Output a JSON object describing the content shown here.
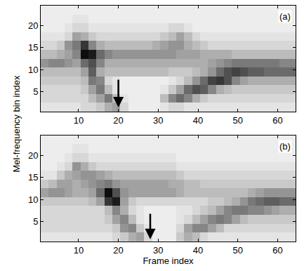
{
  "chart_data": {
    "type": "heatmap",
    "xlabel": "Frame index",
    "ylabel": "Mel-frequency bin index",
    "x": [
      1.5,
      3.5,
      5.5,
      7.5,
      9.5,
      11.5,
      13.5,
      15.5,
      17.5,
      19.5,
      21.5,
      23.5,
      25.5,
      27.5,
      29.5,
      31.5,
      33.5,
      35.5,
      37.5,
      39.5,
      41.5,
      43.5,
      45.5,
      47.5,
      49.5,
      51.5,
      53.5,
      55.5,
      57.5,
      59.5,
      61.5,
      63.5
    ],
    "y": [
      1.5,
      3.5,
      5.5,
      7.5,
      9.5,
      11.5,
      13.5,
      15.5,
      17.5,
      19.5,
      21.5,
      23.5
    ],
    "xlim": [
      0.5,
      64.5
    ],
    "ylim": [
      0.5,
      24.5
    ],
    "xticks": [
      10,
      20,
      30,
      40,
      50,
      60
    ],
    "yticks": [
      5,
      10,
      15,
      20
    ],
    "zlim": [
      0,
      10
    ],
    "panels": [
      {
        "label": "(a)",
        "arrow": {
          "x": 20,
          "y_start": 8,
          "y_end": 1.5
        },
        "z": [
          [
            1.5,
            1.5,
            1.5,
            1.5,
            1.5,
            2,
            2,
            2.5,
            3.5,
            4,
            2,
            1,
            1,
            1,
            1,
            1.5,
            2,
            2,
            1.5,
            1.5,
            1.5,
            1.5,
            1.5,
            1.5,
            1.5,
            1.5,
            1.5,
            1.5,
            1.5,
            1.5,
            1.5,
            1.5
          ],
          [
            2,
            2,
            2,
            2,
            2,
            2,
            3,
            4,
            5.5,
            3,
            1.5,
            1,
            1,
            1,
            1,
            3,
            5,
            6,
            5,
            3.5,
            2.5,
            2,
            2,
            2,
            2,
            2,
            2,
            2,
            2,
            2,
            2,
            2
          ],
          [
            2,
            2,
            2,
            2,
            2,
            2.5,
            4,
            5.5,
            3,
            1.5,
            1,
            1,
            1,
            1,
            1,
            1.5,
            2.5,
            4,
            6,
            7,
            6.5,
            5,
            3.5,
            3,
            2.5,
            2.5,
            2.5,
            2.5,
            2.5,
            2.5,
            2.5,
            2.5
          ],
          [
            2.5,
            2.5,
            2.5,
            2.5,
            2.5,
            3,
            5.5,
            5,
            2,
            1.5,
            1,
            1,
            1,
            1,
            1,
            1,
            1.5,
            2,
            3,
            4.5,
            6,
            7.5,
            8,
            7,
            5,
            4,
            3.5,
            3.5,
            3.5,
            3.5,
            3.5,
            3.5
          ],
          [
            3,
            3,
            3,
            3,
            3,
            4,
            6.5,
            3.5,
            3,
            3,
            3,
            3,
            3,
            3,
            3,
            3,
            2.5,
            2.5,
            2.5,
            3,
            3.5,
            4.5,
            6,
            7,
            7.5,
            7,
            6.5,
            6.5,
            6,
            6,
            6,
            6
          ],
          [
            4.5,
            5,
            5,
            4.5,
            4,
            6,
            7,
            5,
            3.5,
            3.5,
            3.5,
            3.5,
            3.5,
            3.5,
            3.5,
            3.5,
            3.5,
            3.5,
            3.5,
            3.5,
            3.5,
            4,
            4.5,
            5,
            5.5,
            5.5,
            5.5,
            5.5,
            5.5,
            5.5,
            5,
            5
          ],
          [
            3,
            3,
            3.5,
            4,
            5,
            9.5,
            9,
            6,
            5,
            4.5,
            4.5,
            4.5,
            4.5,
            4.5,
            4.5,
            4.5,
            4.5,
            4,
            4,
            4,
            3.5,
            3.5,
            3.5,
            3.5,
            3,
            3,
            3,
            3,
            3,
            3,
            3,
            3
          ],
          [
            2,
            2,
            2.5,
            4.5,
            5.5,
            8,
            5,
            3.5,
            3,
            3,
            3,
            3,
            3,
            3,
            3.5,
            4,
            4.5,
            4.5,
            3.5,
            3,
            2.5,
            2,
            2,
            2,
            2,
            2,
            2,
            2,
            2,
            2,
            2,
            2
          ],
          [
            1.5,
            1.5,
            1.5,
            2,
            4,
            3.5,
            2.5,
            2,
            2,
            2,
            2,
            2,
            2,
            2,
            2,
            2.5,
            3,
            4,
            3,
            2,
            1.5,
            1.5,
            1.5,
            1.5,
            1.5,
            1.5,
            1.5,
            1.5,
            1.5,
            1.5,
            1.5,
            1.5
          ],
          [
            1,
            1,
            1,
            1.5,
            2,
            2,
            1.5,
            1.5,
            1.5,
            1.5,
            1.5,
            1.5,
            1.5,
            1.5,
            1.5,
            1.5,
            2,
            2,
            1.5,
            1,
            1,
            1,
            1,
            1,
            1,
            1,
            1,
            1,
            1,
            1,
            1,
            1
          ],
          [
            1,
            1,
            1,
            1,
            1.5,
            1.5,
            1,
            1,
            1,
            1,
            1,
            1,
            1,
            1,
            1,
            1,
            1,
            1,
            1,
            1,
            1,
            1,
            1,
            1,
            1,
            1,
            1,
            1,
            1,
            1,
            1,
            1
          ],
          [
            1,
            1,
            1,
            1,
            1,
            1,
            1,
            1,
            1,
            1,
            1,
            1,
            1,
            1,
            1,
            1,
            1,
            1,
            1,
            1,
            1,
            1,
            1,
            1,
            1,
            1,
            1,
            1,
            1,
            1,
            1,
            1
          ]
        ]
      },
      {
        "label": "(b)",
        "arrow": {
          "x": 28,
          "y_start": 7,
          "y_end": 1
        },
        "z": [
          [
            1.5,
            1.5,
            1.5,
            1.5,
            1.5,
            1.5,
            1.5,
            1.5,
            1.5,
            2,
            2.5,
            3.5,
            4,
            2,
            1,
            1,
            1,
            2.5,
            3.5,
            3,
            2,
            1.5,
            1.5,
            1.5,
            1.5,
            1.5,
            1.5,
            1.5,
            1.5,
            1.5,
            1.5,
            1.5
          ],
          [
            2,
            2,
            2,
            2,
            2,
            2,
            2,
            2,
            2,
            2.5,
            4.5,
            5,
            2.5,
            1.5,
            1,
            1,
            1,
            2,
            4,
            5,
            5,
            4,
            3,
            2,
            2,
            2,
            2,
            2,
            2,
            2,
            2,
            2
          ],
          [
            2,
            2,
            2,
            2,
            2,
            2,
            2,
            2,
            2.5,
            4,
            5,
            3,
            1.5,
            1,
            1,
            1,
            1,
            1.5,
            2,
            3,
            4,
            5,
            5.5,
            5,
            4,
            3,
            2.5,
            2.5,
            2.5,
            2.5,
            2.5,
            2.5
          ],
          [
            2,
            2,
            2,
            2,
            2,
            2,
            2,
            2,
            3,
            5,
            3.5,
            2,
            1.5,
            1,
            1,
            1,
            1,
            1.5,
            1.5,
            2,
            2.5,
            3,
            4,
            5,
            5.5,
            5.5,
            5,
            5,
            4.5,
            4,
            3.5,
            3.5
          ],
          [
            2.5,
            2.5,
            2.5,
            2.5,
            2.5,
            2.5,
            3,
            4,
            8,
            9,
            4,
            2.5,
            2,
            2,
            2,
            2,
            2,
            2,
            2,
            2,
            2,
            2.5,
            2.5,
            3,
            3.5,
            4.5,
            5.5,
            6,
            6.5,
            6.5,
            6,
            6
          ],
          [
            4,
            4.5,
            4.5,
            4,
            3.5,
            3.5,
            4,
            6,
            9.5,
            7,
            4.5,
            4,
            4,
            4,
            4,
            4,
            4,
            3.5,
            3,
            3,
            3,
            3,
            3,
            3,
            3,
            3,
            3.5,
            4,
            4.5,
            4.5,
            4.5,
            4.5
          ],
          [
            2.5,
            3,
            4,
            4,
            3.5,
            4,
            4.5,
            5,
            5.5,
            4.5,
            4,
            4,
            4,
            4,
            4,
            4,
            3.5,
            3.5,
            3,
            3,
            2.5,
            2.5,
            2.5,
            2.5,
            2.5,
            2.5,
            2.5,
            2.5,
            2.5,
            2.5,
            2.5,
            2.5
          ],
          [
            1.5,
            1.5,
            2.5,
            3.5,
            4,
            4.5,
            4.5,
            4,
            3.5,
            3,
            3,
            3,
            3,
            3,
            3,
            3,
            3,
            2.5,
            2,
            2,
            2,
            2,
            2,
            2,
            2,
            2,
            2,
            2,
            2,
            2,
            2,
            2
          ],
          [
            1,
            1,
            1.5,
            2,
            4.5,
            3.5,
            2.5,
            2,
            2,
            2,
            2,
            2,
            2,
            2,
            2,
            2,
            2,
            1.5,
            1.5,
            1.5,
            1.5,
            1.5,
            1.5,
            1.5,
            1.5,
            1.5,
            1.5,
            1.5,
            1.5,
            1.5,
            1.5,
            1.5
          ],
          [
            1,
            1,
            1,
            1.5,
            2,
            2,
            1.5,
            1.5,
            1.5,
            1.5,
            1.5,
            1.5,
            1.5,
            1.5,
            1.5,
            1.5,
            1.5,
            1,
            1,
            1,
            1,
            1,
            1,
            1,
            1,
            1,
            1,
            1,
            1,
            1,
            1,
            1
          ],
          [
            1,
            1,
            1,
            1,
            1.5,
            1.5,
            1,
            1,
            1,
            1,
            1,
            1,
            1,
            1,
            1,
            1,
            1,
            1,
            1,
            1,
            1,
            1,
            1,
            1,
            1,
            1,
            1,
            1,
            1,
            1,
            1,
            1
          ],
          [
            1,
            1,
            1,
            1,
            1,
            1,
            1,
            1,
            1,
            1,
            1,
            1,
            1,
            1,
            1,
            1,
            1,
            1,
            1,
            1,
            1,
            1,
            1,
            1,
            1,
            1,
            1,
            1,
            1,
            1,
            1,
            1
          ]
        ]
      }
    ]
  }
}
